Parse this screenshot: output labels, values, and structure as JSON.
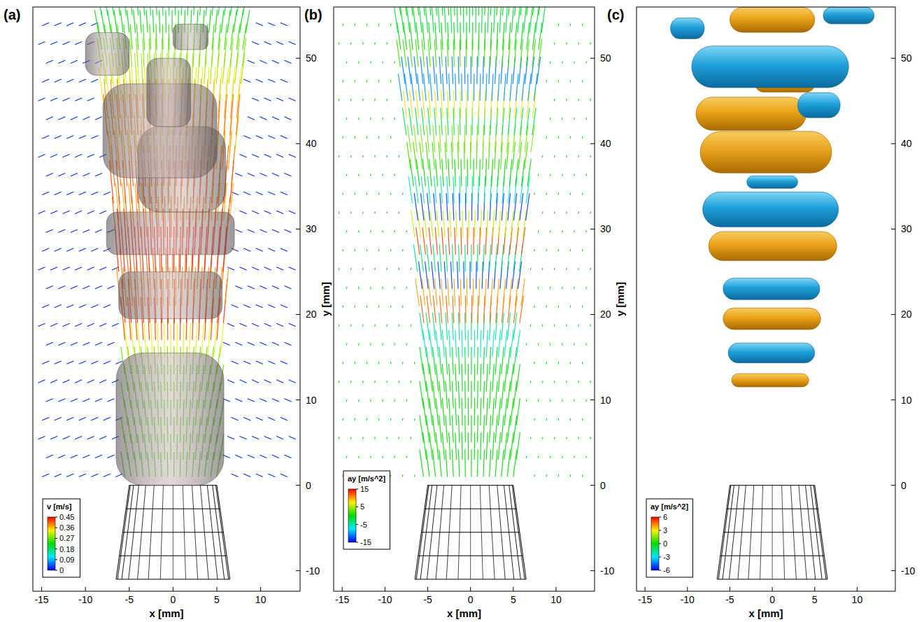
{
  "chart_data": [
    {
      "type": "velocity_field",
      "panel": "(a)",
      "xlabel": "x [mm]",
      "ylabel": "y [mm]",
      "xlim": [
        -16,
        14.5
      ],
      "ylim": [
        -12.4,
        56
      ],
      "xticks": [
        -15,
        -10,
        -5,
        0,
        5,
        10
      ],
      "yticks": [
        -10,
        0,
        10,
        20,
        30,
        40,
        50
      ],
      "colorbar": {
        "title": "v [m/s]",
        "range": [
          0,
          0.45
        ],
        "ticks": [
          0.45,
          0.36,
          0.27,
          0.18,
          0.09,
          0
        ]
      },
      "rows": {
        "y": [
          1,
          3,
          5,
          7,
          9,
          11,
          13,
          15,
          17,
          19,
          21,
          23,
          25,
          27,
          29,
          31,
          33,
          35,
          37,
          39,
          41,
          43,
          45,
          47,
          49,
          51,
          53,
          55
        ],
        "half_width": [
          5.5,
          5.5,
          5.5,
          5.5,
          5.5,
          5.5,
          5.5,
          5.5,
          5.5,
          5.8,
          6,
          6,
          6.2,
          6.3,
          6.5,
          6.5,
          6.8,
          7,
          7,
          7.3,
          7.5,
          7.8,
          8,
          8,
          8.2,
          8.5,
          8.5,
          8.5
        ],
        "values": [
          0.24,
          0.25,
          0.25,
          0.25,
          0.26,
          0.26,
          0.27,
          0.33,
          0.42,
          0.43,
          0.38,
          0.4,
          0.44,
          0.45,
          0.4,
          0.37,
          0.42,
          0.4,
          0.38,
          0.36,
          0.4,
          0.38,
          0.33,
          0.3,
          0.28,
          0.25,
          0.22,
          0.2
        ]
      },
      "ambient_value": 0.02,
      "isosurfaces": [
        {
          "x0": -6.5,
          "x1": 5.8,
          "y0": 0,
          "y1": 15.5
        },
        {
          "x0": -6.2,
          "x1": 5.6,
          "y0": 19.5,
          "y1": 25
        },
        {
          "x0": -7.6,
          "x1": 7,
          "y0": 27,
          "y1": 32
        },
        {
          "x0": -4,
          "x1": 6,
          "y0": 32,
          "y1": 42
        },
        {
          "x0": -8,
          "x1": 5,
          "y0": 36,
          "y1": 47
        },
        {
          "x0": -3,
          "x1": 2,
          "y0": 42,
          "y1": 50
        },
        {
          "x0": -10,
          "x1": -5,
          "y0": 48,
          "y1": 53
        },
        {
          "x0": 0,
          "x1": 4,
          "y0": 51,
          "y1": 54
        }
      ],
      "nozzle": {
        "y_top": 0,
        "y_bottom": -11,
        "top_halfwidth": 5,
        "bottom_halfwidth": 6.5
      }
    },
    {
      "type": "acceleration_field",
      "panel": "(b)",
      "xlabel": "x [mm]",
      "ylabel": "y [mm]",
      "xlim": [
        -16,
        14.5
      ],
      "ylim": [
        -12.4,
        56
      ],
      "xticks": [
        -15,
        -10,
        -5,
        0,
        5,
        10
      ],
      "yticks": [
        -10,
        0,
        10,
        20,
        30,
        40,
        50
      ],
      "colorbar": {
        "title": "ay [m/s^2]",
        "range": [
          -15,
          15
        ],
        "ticks": [
          15,
          5,
          -5,
          -15
        ]
      },
      "rows": {
        "y": [
          1,
          3,
          5,
          7,
          9,
          11,
          13,
          15,
          17,
          19,
          21,
          23,
          25,
          27,
          29,
          31,
          33,
          35,
          37,
          39,
          41,
          43,
          45,
          47,
          49,
          51,
          53,
          55
        ],
        "half_width": [
          5.5,
          5.5,
          5.5,
          5.5,
          5.5,
          5.5,
          5.5,
          5.5,
          5.5,
          5.8,
          6,
          6,
          6.2,
          6.3,
          6.5,
          6.5,
          6.8,
          7,
          7,
          7.3,
          7.5,
          7.8,
          8,
          8,
          8.2,
          8.5,
          8.5,
          8.5
        ],
        "values": [
          0,
          0,
          0,
          0,
          0,
          0,
          -1,
          -6,
          -4,
          12,
          10,
          -13,
          -4,
          13,
          6,
          -13,
          -6,
          0,
          2,
          4,
          -3,
          8,
          -10,
          -11,
          2,
          0,
          -2,
          0
        ]
      },
      "ambient_value": 0,
      "nozzle": {
        "y_top": 0,
        "y_bottom": -11,
        "top_halfwidth": 5,
        "bottom_halfwidth": 6.5
      }
    },
    {
      "type": "isosurface",
      "panel": "(c)",
      "xlabel": "x [mm]",
      "xlim": [
        -16,
        14.5
      ],
      "ylim": [
        -12.4,
        56
      ],
      "xticks": [
        -15,
        -10,
        -5,
        0,
        5,
        10
      ],
      "yticks": [
        -10,
        0,
        10,
        20,
        30,
        40,
        50
      ],
      "colorbar": {
        "title": "ay [m/s^2]",
        "range": [
          -6,
          6
        ],
        "ticks": [
          6,
          3,
          0,
          -3,
          -6
        ]
      },
      "surfaces": [
        {
          "ay": 3,
          "y": 12.3,
          "x0": -4.8,
          "x1": 4.3,
          "h": 1.6
        },
        {
          "ay": -3,
          "y": 15.5,
          "x0": -5.2,
          "x1": 5,
          "h": 2.4
        },
        {
          "ay": 3,
          "y": 19.5,
          "x0": -5.8,
          "x1": 5.7,
          "h": 2.6
        },
        {
          "ay": -3,
          "y": 23,
          "x0": -5.8,
          "x1": 5.6,
          "h": 2.6
        },
        {
          "ay": 3,
          "y": 28,
          "x0": -7.5,
          "x1": 7.6,
          "h": 3.5
        },
        {
          "ay": -3,
          "y": 32.3,
          "x0": -8.2,
          "x1": 7.8,
          "h": 4.2
        },
        {
          "ay": -3,
          "y": 35.5,
          "x0": -3,
          "x1": 3,
          "h": 1.5
        },
        {
          "ay": 3,
          "y": 39,
          "x0": -8.5,
          "x1": 7,
          "h": 5
        },
        {
          "ay": 3,
          "y": 43.5,
          "x0": -9,
          "x1": 4,
          "h": 4
        },
        {
          "ay": -3,
          "y": 44.5,
          "x0": 3,
          "x1": 8,
          "h": 3
        },
        {
          "ay": 3,
          "y": 47,
          "x0": -2,
          "x1": 5,
          "h": 2
        },
        {
          "ay": -3,
          "y": 49,
          "x0": -9.5,
          "x1": 9,
          "h": 5
        },
        {
          "ay": -3,
          "y": 53.5,
          "x0": -12,
          "x1": -8,
          "h": 2.5
        },
        {
          "ay": 3,
          "y": 54.5,
          "x0": -5,
          "x1": 5,
          "h": 3
        },
        {
          "ay": -3,
          "y": 55,
          "x0": 6,
          "x1": 12,
          "h": 2
        }
      ],
      "nozzle": {
        "y_top": 0,
        "y_bottom": -11,
        "top_halfwidth": 5,
        "bottom_halfwidth": 6.5
      }
    }
  ]
}
